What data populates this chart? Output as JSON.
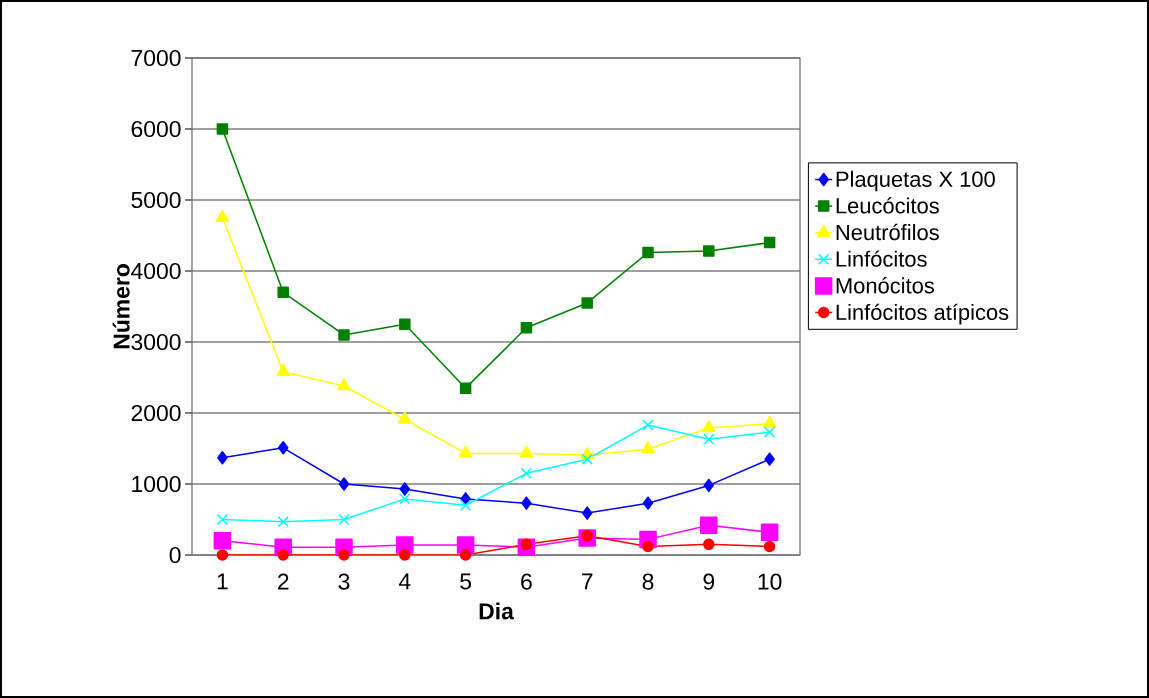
{
  "chart_data": {
    "type": "line",
    "xlabel": "Dia",
    "ylabel": "Número",
    "categories": [
      "1",
      "2",
      "3",
      "4",
      "5",
      "6",
      "7",
      "8",
      "9",
      "10"
    ],
    "ylim": [
      0,
      7000
    ],
    "yticks": [
      0,
      1000,
      2000,
      3000,
      4000,
      5000,
      6000,
      7000
    ],
    "grid": "y",
    "legend": "right",
    "series": [
      {
        "name": "Plaquetas X 100",
        "color": "#0000ff",
        "marker": "diamond",
        "values": [
          1370,
          1510,
          1000,
          930,
          790,
          730,
          590,
          730,
          980,
          1350
        ]
      },
      {
        "name": "Leucócitos",
        "color": "#008000",
        "marker": "square",
        "values": [
          6000,
          3700,
          3100,
          3250,
          2350,
          3200,
          3550,
          4260,
          4280,
          4400
        ]
      },
      {
        "name": "Neutrófilos",
        "color": "#ffff00",
        "marker": "triangle",
        "values": [
          4750,
          2580,
          2380,
          1910,
          1430,
          1430,
          1410,
          1490,
          1790,
          1850
        ]
      },
      {
        "name": "Linfócitos",
        "color": "#00ffff",
        "marker": "cross",
        "values": [
          500,
          470,
          500,
          790,
          700,
          1150,
          1350,
          1830,
          1630,
          1730
        ]
      },
      {
        "name": "Monócitos",
        "color": "#ff00ff",
        "marker": "square",
        "values": [
          200,
          110,
          110,
          140,
          140,
          110,
          240,
          220,
          420,
          320
        ]
      },
      {
        "name": "Linfócitos atípicos",
        "color": "#ff0000",
        "marker": "circle",
        "values": [
          0,
          0,
          0,
          0,
          0,
          150,
          270,
          120,
          150,
          120
        ]
      }
    ]
  }
}
